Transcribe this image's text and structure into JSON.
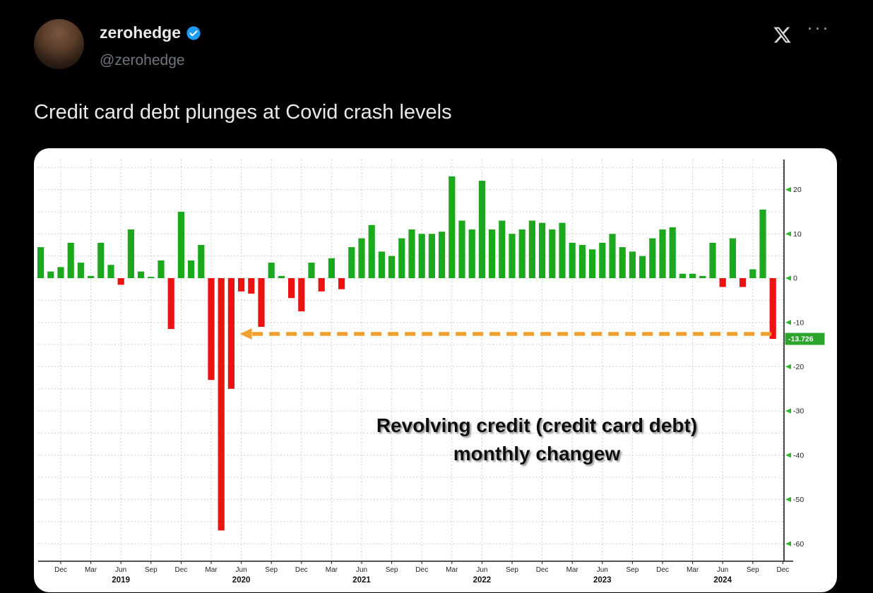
{
  "post": {
    "author_name": "zerohedge",
    "author_handle": "@zerohedge",
    "verified": true,
    "text": "Credit card debt plunges at Covid crash levels",
    "icons": {
      "more": "···"
    }
  },
  "chart_data": {
    "type": "bar",
    "title": "Revolving credit (credit card debt) monthly changew",
    "title_lines": [
      "Revolving credit (credit card debt)",
      "monthly changew"
    ],
    "ylim": [
      -64,
      26
    ],
    "y_ticks": [
      20,
      10,
      0,
      -10,
      -20,
      -30,
      -40,
      -50,
      -60
    ],
    "grid": true,
    "x": [
      "2018-10",
      "2018-11",
      "2018-12",
      "2019-01",
      "2019-02",
      "2019-03",
      "2019-04",
      "2019-05",
      "2019-06",
      "2019-07",
      "2019-08",
      "2019-09",
      "2019-10",
      "2019-11",
      "2019-12",
      "2020-01",
      "2020-02",
      "2020-03",
      "2020-04",
      "2020-05",
      "2020-06",
      "2020-07",
      "2020-08",
      "2020-09",
      "2020-10",
      "2020-11",
      "2020-12",
      "2021-01",
      "2021-02",
      "2021-03",
      "2021-04",
      "2021-05",
      "2021-06",
      "2021-07",
      "2021-08",
      "2021-09",
      "2021-10",
      "2021-11",
      "2021-12",
      "2022-01",
      "2022-02",
      "2022-03",
      "2022-04",
      "2022-05",
      "2022-06",
      "2022-07",
      "2022-08",
      "2022-09",
      "2022-10",
      "2022-11",
      "2022-12",
      "2023-01",
      "2023-02",
      "2023-03",
      "2023-04",
      "2023-05",
      "2023-06",
      "2023-07",
      "2023-08",
      "2023-09",
      "2023-10",
      "2023-11",
      "2023-12",
      "2024-01",
      "2024-02",
      "2024-03",
      "2024-04",
      "2024-05",
      "2024-06",
      "2024-07",
      "2024-08",
      "2024-09",
      "2024-10",
      "2024-11",
      "2024-12"
    ],
    "values": [
      7,
      1.5,
      2.5,
      8,
      3.5,
      0.5,
      8,
      3,
      -1.5,
      11,
      1.5,
      0.3,
      4,
      -11.5,
      15,
      4,
      7.5,
      -23,
      -57,
      -25,
      -3,
      -3.5,
      -11,
      3.5,
      0.5,
      -4.5,
      -7.5,
      3.5,
      -3,
      4.5,
      -2.5,
      7,
      9,
      12,
      6,
      5,
      9,
      11,
      10,
      10,
      10.5,
      23,
      13,
      11,
      22,
      11,
      13,
      10,
      11,
      13,
      12.5,
      11,
      12.5,
      8,
      7.5,
      6.5,
      8,
      10,
      7,
      6,
      5,
      9,
      11,
      11.5,
      1,
      1,
      0.5,
      8,
      -2,
      9,
      -2,
      2,
      15.5,
      -13.726,
      null
    ],
    "x_tick_months": {
      "3": "Mar",
      "6": "Jun",
      "9": "Sep",
      "12": "Dec"
    },
    "year_labels": [
      "2019",
      "2020",
      "2021",
      "2022",
      "2023",
      "2024"
    ],
    "current_value": -13.726,
    "current_value_label": "-13.726",
    "annotation_arrow": {
      "from_month": "2024-11",
      "to_month": "2020-06",
      "at_value": -12.6
    },
    "colors": {
      "positive": "#1ca81c",
      "negative": "#ed1212",
      "arrow": "#efa02e",
      "badge_bg": "#2ca52c",
      "badge_text": "#ffffff",
      "axis": "#1a1a1a",
      "grid": "#c2c2c2",
      "background": "#ffffff"
    }
  }
}
